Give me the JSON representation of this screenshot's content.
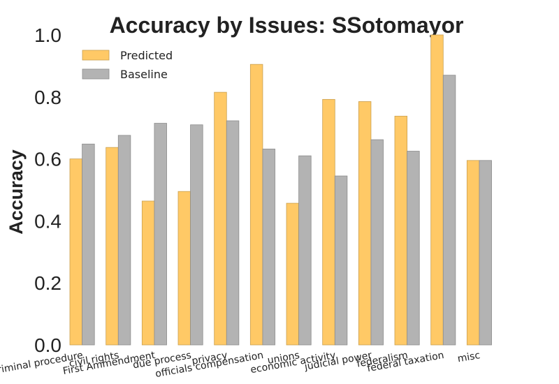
{
  "chart_data": {
    "type": "bar",
    "title": "Accuracy by Issues: SSotomayor",
    "xlabel": "",
    "ylabel": "Accuracy",
    "ylim": [
      0,
      1.0
    ],
    "yticks": [
      "0.0",
      "0.2",
      "0.4",
      "0.6",
      "0.8",
      "1.0"
    ],
    "grid": false,
    "legend_position": "top-left",
    "categories": [
      "criminal procedure",
      "civil rights",
      "First Ammendment",
      "due process",
      "privacy",
      "officials compensation",
      "unions",
      "economic activity",
      "judicial power",
      "federalism",
      "federal taxation",
      "misc"
    ],
    "series": [
      {
        "name": "Predicted",
        "color": "#ffc966",
        "edge": "#c9a050",
        "values": [
          0.6,
          0.637,
          0.464,
          0.495,
          0.815,
          0.905,
          0.457,
          0.792,
          0.785,
          0.738,
          1.0,
          0.595
        ]
      },
      {
        "name": "Baseline",
        "color": "#b3b3b3",
        "edge": "#8c8c8c",
        "values": [
          0.648,
          0.676,
          0.715,
          0.71,
          0.723,
          0.632,
          0.61,
          0.545,
          0.662,
          0.625,
          0.87,
          0.595
        ]
      }
    ]
  }
}
